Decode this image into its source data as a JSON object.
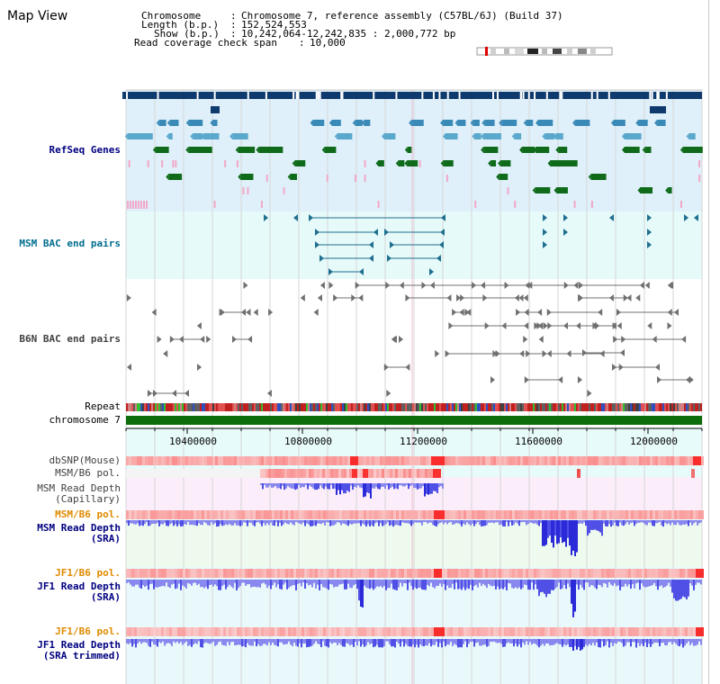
{
  "page": {
    "title": "Map View"
  },
  "header": {
    "chromosome_label": "Chromosome",
    "chromosome_value": "Chromosome 7, reference assembly (C57BL/6J) (Build 37)",
    "length_label": "Length (b.p.)",
    "length_value": "152,524,553",
    "show_label": "Show (b.p.)",
    "show_value": "10,242,064-12,242,835 : 2,000,772 bp",
    "coverage_label": "Read coverage check span",
    "coverage_value": "10,000"
  },
  "tracks": {
    "refseq": "RefSeq Genes",
    "msm_bac": "MSM BAC end pairs",
    "b6n_bac": "B6N BAC end pairs",
    "repeat": "Repeat",
    "chromosome": "chromosome 7",
    "dbsnp": "dbSNP(Mouse)",
    "msm_b6_pol_1": "MSM/B6 pol.",
    "msm_read_depth_cap_1": "MSM Read Depth",
    "msm_read_depth_cap_2": "(Capillary)",
    "msm_b6_pol_2": "MSM/B6 pol.",
    "msm_read_depth_sra_1": "MSM Read Depth",
    "msm_read_depth_sra_2": "(SRA)",
    "jf1_b6_pol_1": "JF1/B6 pol.",
    "jf1_read_depth_sra_1": "JF1 Read Depth",
    "jf1_read_depth_sra_2": "(SRA)",
    "jf1_b6_pol_2": "JF1/B6 pol.",
    "jf1_read_depth_trim_1": "JF1 Read Depth",
    "jf1_read_depth_trim_2": "(SRA trimmed)"
  },
  "axis": {
    "ticks": [
      "10400000",
      "10800000",
      "11200000",
      "11600000",
      "12000000"
    ]
  },
  "colors": {
    "refseq_bg": "#dff0fa",
    "msm_bac_bg": "#e6fafa",
    "gene_dark_blue": "#0f3a6e",
    "gene_mid_blue": "#3a8ab8",
    "gene_light_blue": "#5aa8cc",
    "gene_green": "#0f6b1a",
    "gene_pink": "#f2a8c8",
    "bac_msm": "#1f6f8f",
    "bac_b6n": "#707070",
    "chromosome_bar": "#0b6e0b",
    "depth_blue": "#5a5ae6",
    "label_navy": "#000080",
    "label_teal": "#006d8f",
    "label_gray": "#404040",
    "label_orange": "#e08a00"
  }
}
